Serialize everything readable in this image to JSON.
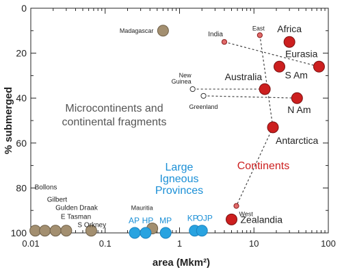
{
  "chart_data": {
    "type": "scatter",
    "xlabel": "area (Mkm²)",
    "ylabel": "% submerged",
    "xscale": "log",
    "xlim": [
      0.01,
      100
    ],
    "ylim": [
      0,
      100
    ],
    "y_inverted": true,
    "x_ticks": [
      "0.01",
      "0.1",
      "1",
      "10",
      "100"
    ],
    "y_ticks": [
      "0",
      "20",
      "40",
      "60",
      "80",
      "100"
    ],
    "colors": {
      "continents": "#cc1f1f",
      "continents_small": "#e06a6a",
      "microcontinents": "#a38f70",
      "lip": "#29a3e0",
      "open": "#ffffff"
    },
    "groups": [
      {
        "label": "Microcontinents and continental fragments",
        "lines": [
          "Microcontinents and",
          "continental fragments"
        ],
        "color": "#555555"
      },
      {
        "label": "Large Igneous Provinces",
        "lines": [
          "Large",
          "Igneous",
          "Provinces"
        ],
        "color": "#1a8fd6"
      },
      {
        "label": "Continents",
        "lines": [
          "Continents"
        ],
        "color": "#cc1f1f"
      }
    ],
    "points": [
      {
        "label": "Africa",
        "x": 30,
        "y": 15,
        "group": "continents",
        "size": "large"
      },
      {
        "label": "Eurasia",
        "x": 75,
        "y": 26,
        "group": "continents",
        "size": "large"
      },
      {
        "label": "S Am",
        "x": 22,
        "y": 26,
        "group": "continents",
        "size": "large"
      },
      {
        "label": "Australia",
        "x": 14,
        "y": 36,
        "group": "continents",
        "size": "large"
      },
      {
        "label": "N Am",
        "x": 38,
        "y": 40,
        "group": "continents",
        "size": "large"
      },
      {
        "label": "Antarctica",
        "x": 18,
        "y": 53,
        "group": "continents",
        "size": "large"
      },
      {
        "label": "Zealandia",
        "x": 5,
        "y": 94,
        "group": "continents",
        "size": "large"
      },
      {
        "label": "India",
        "x": 4,
        "y": 15,
        "group": "continents_small",
        "size": "small"
      },
      {
        "label": "East",
        "x": 12,
        "y": 12,
        "group": "continents_small",
        "size": "small"
      },
      {
        "label": "West",
        "x": 5.8,
        "y": 88,
        "group": "continents_small",
        "size": "small"
      },
      {
        "label": "New Guinea",
        "x": 1.5,
        "y": 36,
        "group": "open",
        "size": "small"
      },
      {
        "label": "Greenland",
        "x": 2.1,
        "y": 39,
        "group": "open",
        "size": "small"
      },
      {
        "label": "Madagascar",
        "x": 0.6,
        "y": 10,
        "group": "microcontinents",
        "size": "large"
      },
      {
        "label": "Bollons",
        "x": 0.0115,
        "y": 99,
        "group": "microcontinents",
        "size": "large"
      },
      {
        "label": "Gilbert",
        "x": 0.0155,
        "y": 99,
        "group": "microcontinents",
        "size": "large"
      },
      {
        "label": "Gulden Draak",
        "x": 0.0215,
        "y": 99,
        "group": "microcontinents",
        "size": "large"
      },
      {
        "label": "E Tasman",
        "x": 0.03,
        "y": 99,
        "group": "microcontinents",
        "size": "large"
      },
      {
        "label": "S Orkney",
        "x": 0.065,
        "y": 99,
        "group": "microcontinents",
        "size": "large"
      },
      {
        "label": "Mauritia",
        "x": 0.43,
        "y": 98,
        "group": "microcontinents",
        "size": "large"
      },
      {
        "label": "AP",
        "x": 0.25,
        "y": 100,
        "group": "lip",
        "size": "large"
      },
      {
        "label": "HP",
        "x": 0.35,
        "y": 100,
        "group": "lip",
        "size": "large"
      },
      {
        "label": "MP",
        "x": 0.65,
        "y": 100,
        "group": "lip",
        "size": "large"
      },
      {
        "label": "KP",
        "x": 1.6,
        "y": 99,
        "group": "lip",
        "size": "large"
      },
      {
        "label": "OJP",
        "x": 2,
        "y": 99,
        "group": "lip",
        "size": "large"
      }
    ],
    "dashed_links": [
      [
        "India",
        "Eurasia"
      ],
      [
        "East",
        "Antarctica"
      ],
      [
        "New Guinea",
        "Australia"
      ],
      [
        "Greenland",
        "N Am"
      ],
      [
        "Antarctica",
        "West"
      ]
    ]
  }
}
